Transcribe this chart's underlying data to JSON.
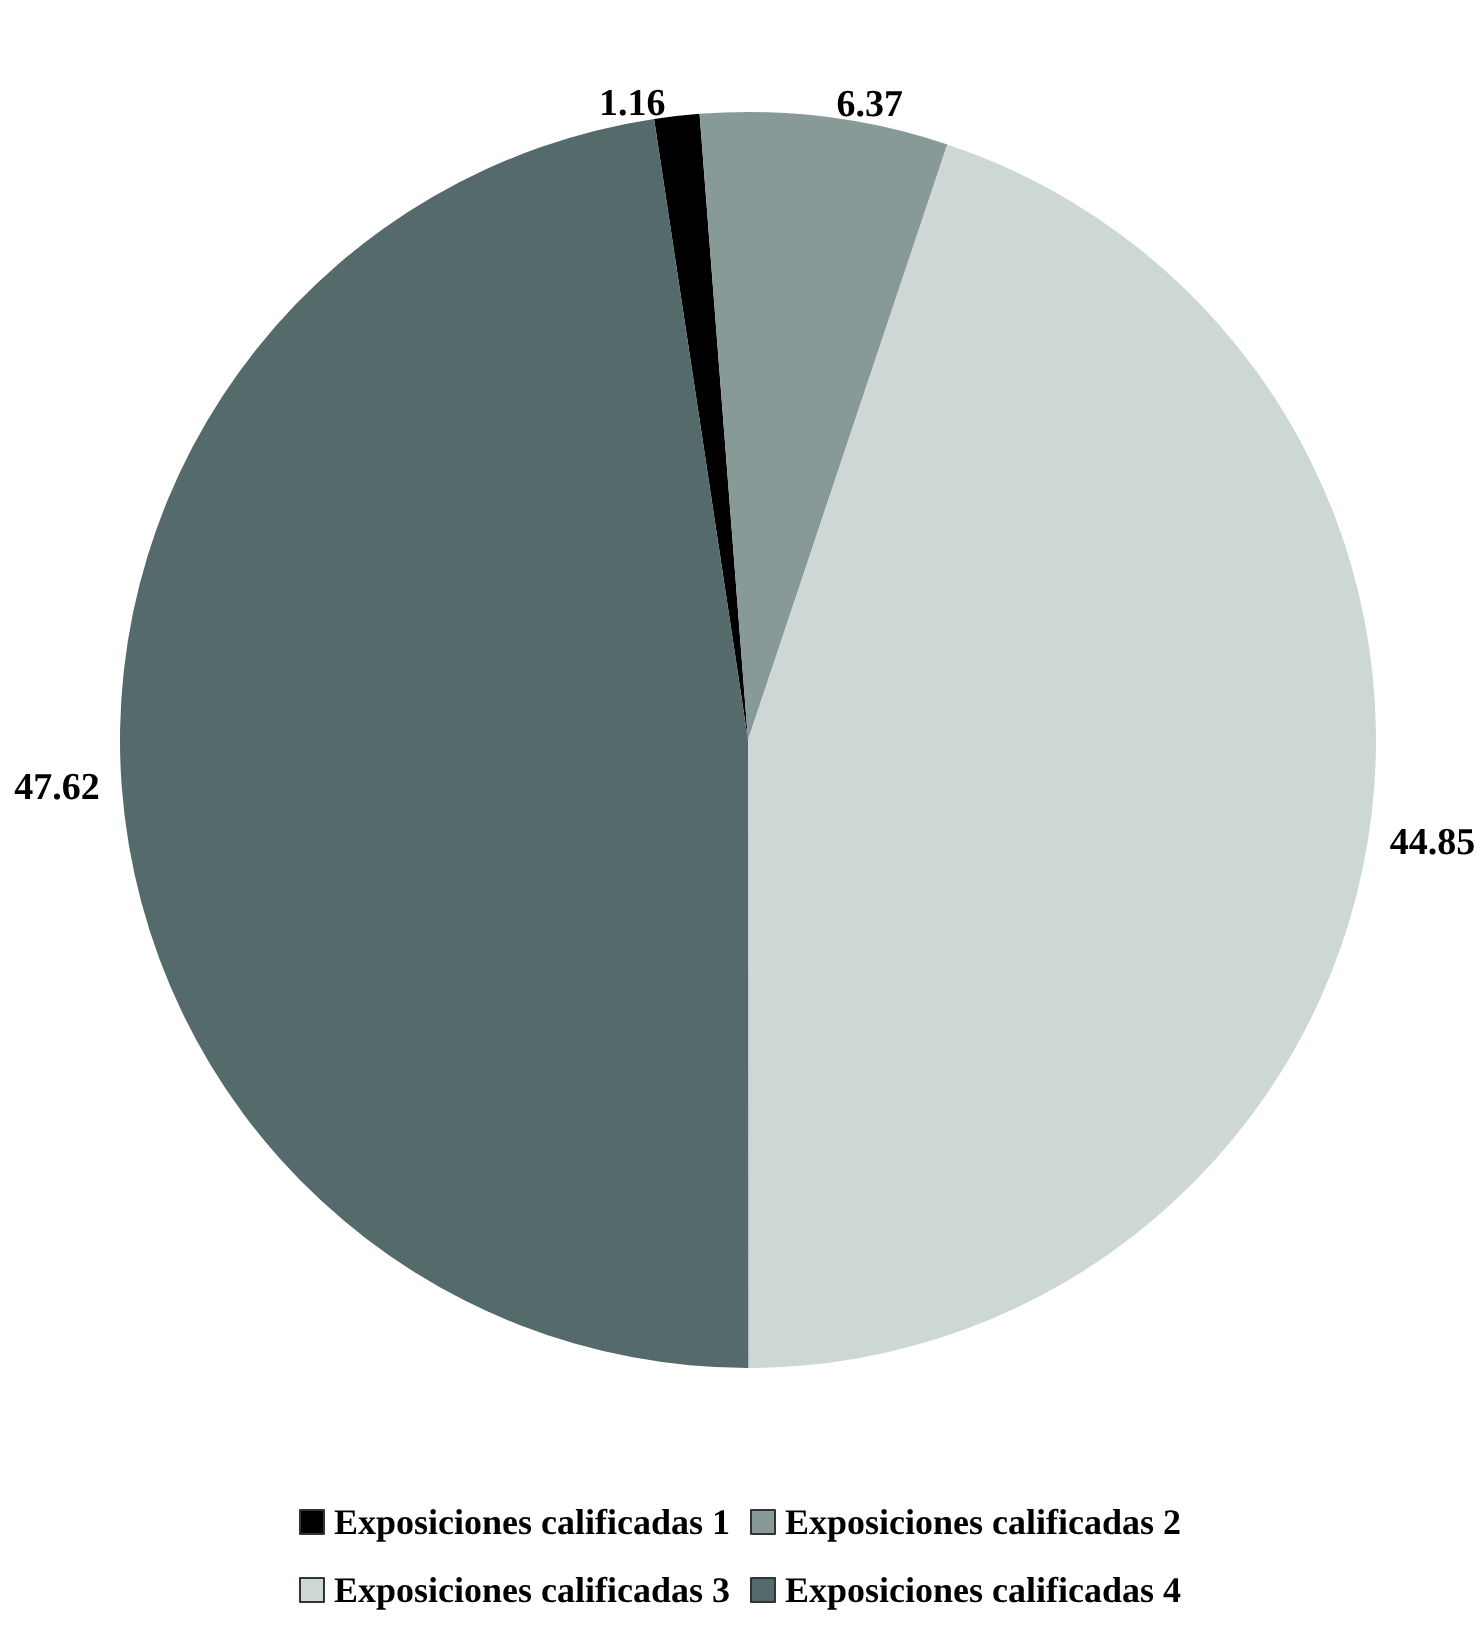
{
  "chart_data": {
    "type": "pie",
    "categories": [
      "Exposiciones calificadas 1",
      "Exposiciones calificadas 2",
      "Exposiciones calificadas 3",
      "Exposiciones calificadas 4"
    ],
    "values": [
      1.16,
      6.37,
      44.85,
      47.62
    ],
    "colors": [
      "#000000",
      "#889a98",
      "#cdd7d5",
      "#556a6a"
    ],
    "data_labels": true,
    "legend": "bottom"
  }
}
